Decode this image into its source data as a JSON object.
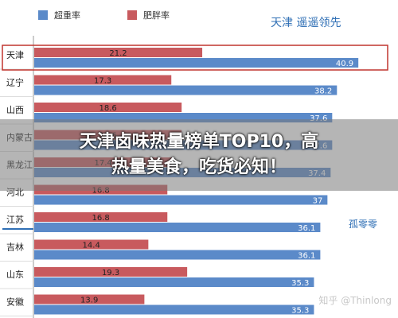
{
  "chart_data": {
    "type": "bar",
    "orientation": "horizontal",
    "categories": [
      "天津",
      "辽宁",
      "山西",
      "内蒙古",
      "黑龙江",
      "河北",
      "江苏",
      "吉林",
      "山东",
      "安徽"
    ],
    "series": [
      {
        "name": "超重率",
        "color": "#5b8ac9",
        "values": [
          40.9,
          38.2,
          37.6,
          37.6,
          37.4,
          37.0,
          36.1,
          36.1,
          35.3,
          35.3
        ]
      },
      {
        "name": "肥胖率",
        "color": "#c85a5e",
        "values": [
          21.2,
          17.3,
          18.6,
          18.6,
          17.4,
          16.8,
          16.8,
          14.4,
          19.3,
          13.9
        ]
      }
    ],
    "xlim": [
      0,
      45
    ],
    "legend_position": "top-left",
    "highlight": "天津"
  },
  "handwritten": {
    "top_right": "天津   遥遥领先",
    "right_side": "孤零零"
  },
  "banner": {
    "line1": "天津卤味热量榜单TOP10，高",
    "line2": "热量美食，吃货必知！"
  },
  "watermark": "知乎 @Thinlong"
}
